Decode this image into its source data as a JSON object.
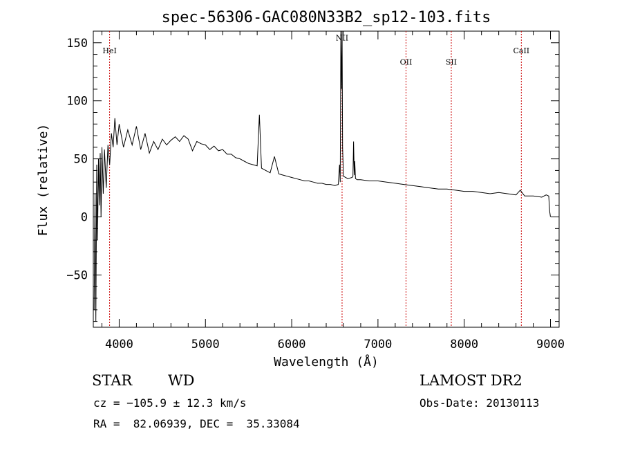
{
  "chart_data": {
    "type": "line",
    "title": "spec-56306-GAC080N33B2_sp12-103.fits",
    "xlabel": "Wavelength (Å)",
    "ylabel": "Flux (relative)",
    "xlim": [
      3700,
      9100
    ],
    "ylim": [
      -95,
      160
    ],
    "x_ticks": [
      {
        "value": 4000,
        "label": "4000"
      },
      {
        "value": 5000,
        "label": "5000"
      },
      {
        "value": 6000,
        "label": "6000"
      },
      {
        "value": 7000,
        "label": "7000"
      },
      {
        "value": 8000,
        "label": "8000"
      },
      {
        "value": 9000,
        "label": "9000"
      }
    ],
    "y_ticks": [
      {
        "value": 150,
        "label": "150"
      },
      {
        "value": 100,
        "label": "100"
      },
      {
        "value": 50,
        "label": "50"
      },
      {
        "value": 0,
        "label": "0"
      },
      {
        "value": -50,
        "label": "−50"
      }
    ],
    "grid": false,
    "line_color": "#000000",
    "marker_color": "#cc0000",
    "line_markers": [
      {
        "label": "HeI",
        "x": 3889,
        "label_y": 141
      },
      {
        "label": "NII",
        "x": 6584,
        "label_y": 152
      },
      {
        "label": "OII",
        "x": 7325,
        "label_y": 131
      },
      {
        "label": "SII",
        "x": 7850,
        "label_y": 131
      },
      {
        "label": "CaII",
        "x": 8662,
        "label_y": 141
      }
    ],
    "series": [
      {
        "x": [
          3710,
          3720,
          3730,
          3740,
          3750,
          3760,
          3770,
          3780,
          3790,
          3800,
          3815,
          3830,
          3850,
          3870,
          3890,
          3910,
          3930,
          3950,
          3975,
          4000,
          4050,
          4100,
          4150,
          4200,
          4250,
          4300,
          4350,
          4400,
          4450,
          4500,
          4550,
          4600,
          4650,
          4700,
          4750,
          4800,
          4850,
          4900,
          4950,
          5000,
          5050,
          5100,
          5150,
          5200,
          5250,
          5300,
          5350,
          5400,
          5450,
          5500,
          5550,
          5600,
          5625,
          5650,
          5700,
          5750,
          5800,
          5850,
          5900,
          5950,
          6000,
          6050,
          6100,
          6150,
          6200,
          6250,
          6300,
          6350,
          6400,
          6450,
          6500,
          6540,
          6555,
          6563,
          6570,
          6578,
          6584,
          6590,
          6600,
          6650,
          6700,
          6710,
          6717,
          6725,
          6731,
          6740,
          6760,
          6800,
          6900,
          7000,
          7100,
          7200,
          7300,
          7400,
          7500,
          7600,
          7700,
          7800,
          7900,
          8000,
          8100,
          8200,
          8300,
          8400,
          8500,
          8600,
          8650,
          8700,
          8800,
          8900,
          8950,
          8980,
          8990,
          9000
        ],
        "y": [
          -80,
          20,
          -90,
          45,
          -20,
          50,
          10,
          55,
          0,
          60,
          20,
          58,
          25,
          62,
          45,
          72,
          60,
          85,
          62,
          80,
          60,
          75,
          62,
          78,
          58,
          72,
          55,
          65,
          58,
          67,
          62,
          66,
          69,
          65,
          70,
          67,
          57,
          65,
          63,
          62,
          58,
          61,
          57,
          58,
          54,
          54,
          51,
          50,
          48,
          46,
          45,
          44,
          88,
          42,
          40,
          38,
          52,
          37,
          36,
          35,
          34,
          33,
          32,
          31,
          31,
          30,
          29,
          29,
          28,
          28,
          27,
          28,
          45,
          30,
          165,
          110,
          165,
          60,
          35,
          33,
          34,
          35,
          65,
          36,
          48,
          33,
          32,
          32,
          31,
          31,
          30,
          29,
          28,
          27,
          26,
          25,
          24,
          24,
          23,
          22,
          22,
          21,
          20,
          21,
          20,
          19,
          23,
          18,
          18,
          17,
          19,
          18,
          5,
          0
        ]
      }
    ]
  },
  "footer": {
    "object_class": "STAR",
    "subclass": "WD",
    "survey": "LAMOST DR2",
    "velocity": "cz = −105.9 ± 12.3 km/s",
    "obs_date": "Obs-Date: 20130113",
    "coords": "RA =  82.06939, DEC =  35.33084"
  }
}
